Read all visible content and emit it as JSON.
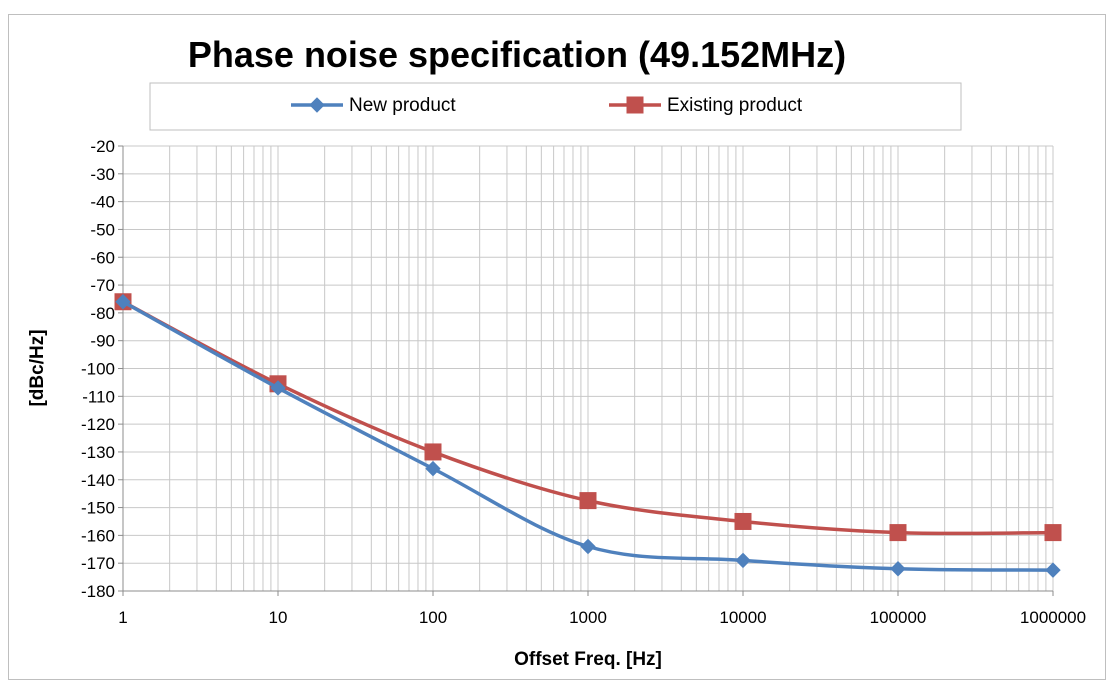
{
  "chart_data": {
    "type": "line",
    "title": "Phase noise specification  (49.152MHz)",
    "xlabel": "Offset Freq. [Hz]",
    "ylabel": "[dBc/Hz]",
    "x_scale": "log",
    "xlim": [
      1,
      1000000
    ],
    "ylim": [
      -180,
      -20
    ],
    "y_step": 10,
    "grid": true,
    "legend_position": "top",
    "x_ticks": [
      "1",
      "10",
      "100",
      "1000",
      "10000",
      "100000",
      "1000000"
    ],
    "y_ticks": [
      "-20",
      "-30",
      "-40",
      "-50",
      "-60",
      "-70",
      "-80",
      "-90",
      "-100",
      "-110",
      "-120",
      "-130",
      "-140",
      "-150",
      "-160",
      "-170",
      "-180"
    ],
    "x": [
      1,
      10,
      100,
      1000,
      10000,
      100000,
      1000000
    ],
    "series": [
      {
        "name": "New product",
        "values": [
          -76,
          -107,
          -136,
          -164,
          -169,
          -172,
          -172.5
        ],
        "color": "#4f81bd",
        "marker": "diamond"
      },
      {
        "name": "Existing product",
        "values": [
          -76,
          -105.5,
          -130,
          -147.5,
          -155,
          -159,
          -159
        ],
        "color": "#c0504d",
        "marker": "square"
      }
    ]
  }
}
